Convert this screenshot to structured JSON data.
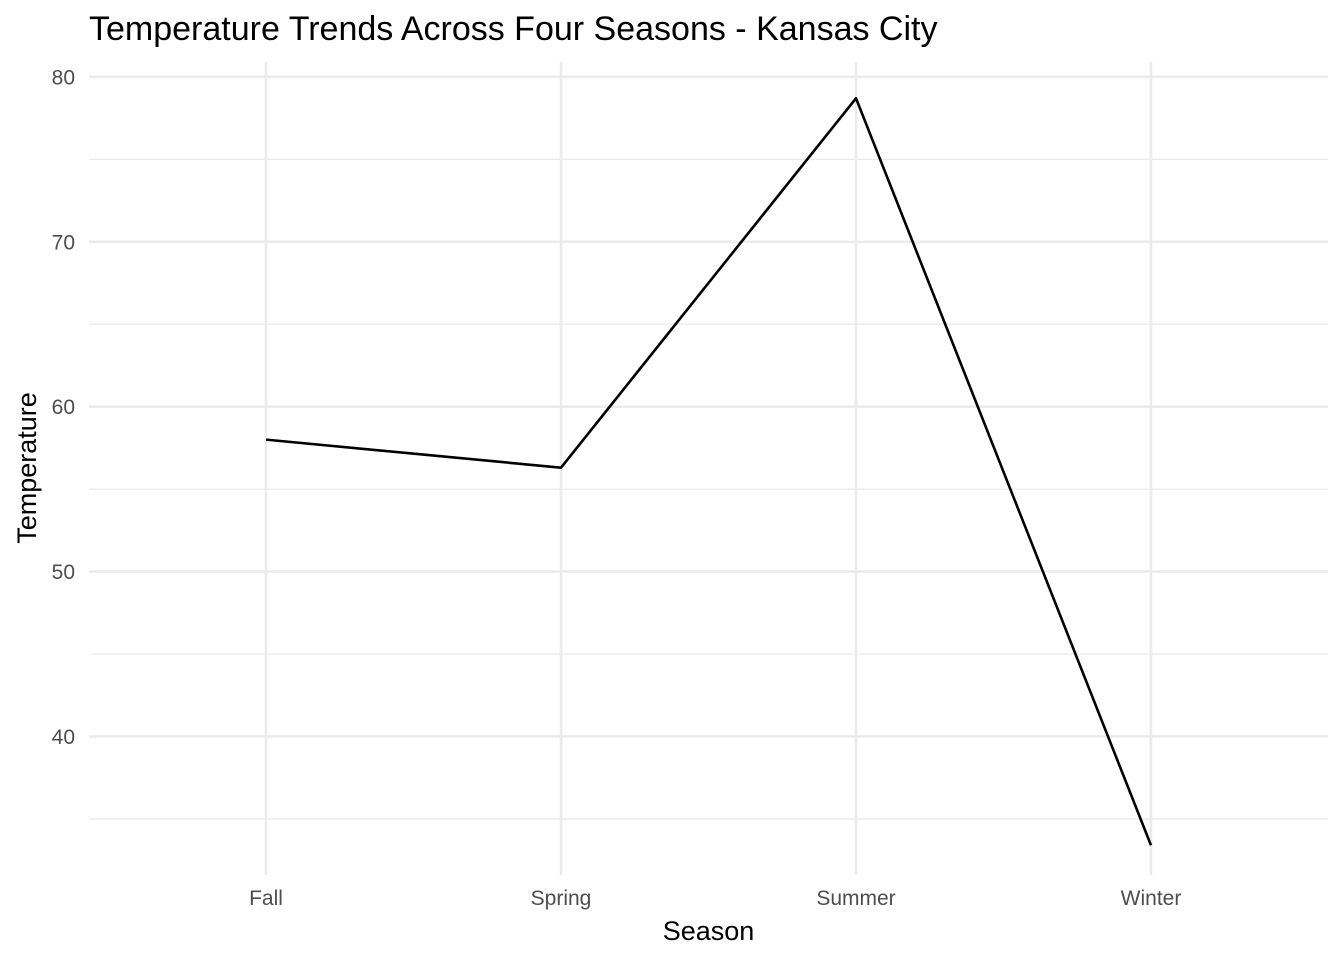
{
  "chart_data": {
    "type": "line",
    "title": "Temperature Trends Across Four Seasons - Kansas City",
    "xlabel": "Season",
    "ylabel": "Temperature",
    "categories": [
      "Fall",
      "Spring",
      "Summer",
      "Winter"
    ],
    "series": [
      {
        "values": [
          58.0,
          56.3,
          78.7,
          33.4
        ],
        "color": "#000000"
      }
    ],
    "ylim": [
      31.6,
      80.9
    ],
    "y_ticks": [
      40,
      50,
      60,
      70,
      80
    ],
    "y_tick_labels": [
      "40",
      "50",
      "60",
      "70",
      "80"
    ],
    "y_minor_ticks": [
      35,
      45,
      55,
      65,
      75
    ],
    "grid": true,
    "legend": "none"
  }
}
